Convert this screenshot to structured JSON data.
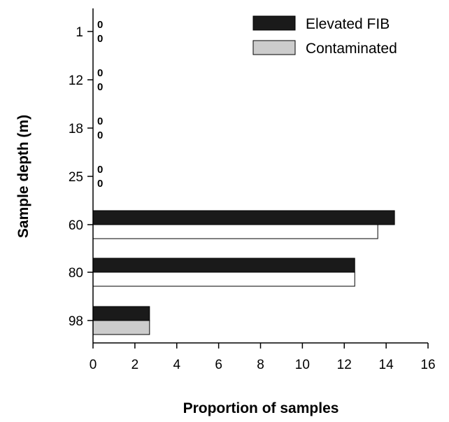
{
  "chart_data": {
    "type": "bar",
    "orientation": "horizontal",
    "xlabel": "Proportion of samples",
    "ylabel": "Sample depth (m)",
    "xlim": [
      0,
      16
    ],
    "x_ticks": [
      "0",
      "2",
      "4",
      "6",
      "8",
      "10",
      "12",
      "14",
      "16"
    ],
    "categories": [
      "1",
      "12",
      "18",
      "25",
      "60",
      "80",
      "98"
    ],
    "legend_position": "top-right",
    "grid": false,
    "series": [
      {
        "name": "Elevated FIB",
        "color": "#1a1a1a",
        "values": [
          0,
          0,
          0,
          0,
          14.4,
          12.5,
          2.7
        ],
        "value_labels": [
          "0",
          "0",
          "0",
          "0",
          "",
          "",
          ""
        ]
      },
      {
        "name": "Contaminated",
        "color": "#cccccc",
        "values": [
          0,
          0,
          0,
          0,
          13.6,
          12.5,
          2.7
        ],
        "value_labels": [
          "0",
          "0",
          "0",
          "0",
          "",
          "",
          ""
        ],
        "bar_fills": [
          "#cccccc",
          "#cccccc",
          "#cccccc",
          "#cccccc",
          "#ffffff",
          "#ffffff",
          "#cccccc"
        ]
      }
    ]
  }
}
